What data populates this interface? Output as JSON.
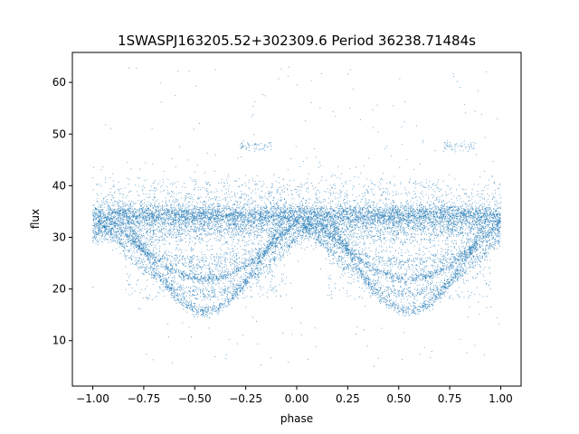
{
  "chart_data": {
    "type": "scatter",
    "title": "1SWASPJ163205.52+302309.6 Period 36238.71484s",
    "xlabel": "phase",
    "ylabel": "flux",
    "xlim": [
      -1.1,
      1.1
    ],
    "ylim": [
      1.2,
      65.8
    ],
    "x_ticks": [
      -1.0,
      -0.75,
      -0.5,
      -0.25,
      0.0,
      0.25,
      0.5,
      0.75,
      1.0
    ],
    "x_tick_labels": [
      "−1.00",
      "−0.75",
      "−0.50",
      "−0.25",
      "0.00",
      "0.25",
      "0.50",
      "0.75",
      "1.00"
    ],
    "y_ticks": [
      10,
      20,
      30,
      40,
      50,
      60
    ],
    "y_tick_labels": [
      "10",
      "20",
      "30",
      "40",
      "50",
      "60"
    ],
    "grid": false,
    "legend": "none",
    "marker_color": "#1f77b4",
    "series": [
      {
        "description_of_structure": [
          {
            "component": "baseline band",
            "phase_range": [
              -1.0,
              1.0
            ],
            "flux_center": 34.2,
            "flux_spread": 2.0,
            "density": "very high"
          },
          {
            "component": "lower band",
            "phase_range": [
              -1.0,
              1.0
            ],
            "flux_center": 31.5,
            "flux_spread": 2.5,
            "density": "high"
          },
          {
            "component": "eclipse arc 1",
            "phase_center": [
              -0.45,
              0.55
            ],
            "min_flux": 22.0,
            "half_width": 0.45
          },
          {
            "component": "eclipse arc 2",
            "phase_center": [
              -0.45,
              0.55
            ],
            "min_flux": 15.8,
            "half_width": 0.4
          },
          {
            "component": "eclipse arc 3",
            "phase_center": [
              -0.45,
              0.55
            ],
            "min_flux": 19.0,
            "half_width": 0.5
          },
          {
            "component": "upper scatter band",
            "phase_range": [
              -1.0,
              1.0
            ],
            "flux_center": 40.0,
            "flux_spread": 3.0,
            "density": "low"
          },
          {
            "component": "upper clump",
            "phase_center": [
              -0.2,
              0.8
            ],
            "flux_center": 47.8,
            "flux_spread": 1.0,
            "density": "low"
          },
          {
            "component": "outliers",
            "phase_range": [
              -1.0,
              1.0
            ],
            "flux_range": [
              5.0,
              63.0
            ],
            "density": "very low"
          }
        ],
        "x_samples": [
          -1.0,
          -0.9,
          -0.8,
          -0.7,
          -0.6,
          -0.5,
          -0.45,
          -0.4,
          -0.3,
          -0.2,
          -0.1,
          0.0,
          0.1,
          0.2,
          0.3,
          0.4,
          0.5,
          0.55,
          0.6,
          0.7,
          0.8,
          0.9,
          1.0
        ],
        "baseline_flux": [
          34.2,
          34.2,
          34.2,
          34.2,
          34.2,
          34.2,
          34.2,
          34.2,
          34.2,
          34.2,
          34.2,
          34.2,
          34.2,
          34.2,
          34.2,
          34.2,
          34.2,
          34.2,
          34.2,
          34.2,
          34.2,
          34.2,
          34.2
        ],
        "arc_min_flux": [
          31.0,
          28.0,
          24.5,
          19.5,
          17.0,
          16.0,
          15.8,
          16.0,
          18.0,
          23.0,
          28.0,
          31.0,
          31.0,
          28.0,
          24.5,
          19.5,
          17.0,
          15.8,
          16.0,
          18.0,
          23.0,
          28.0,
          31.0
        ]
      }
    ]
  }
}
